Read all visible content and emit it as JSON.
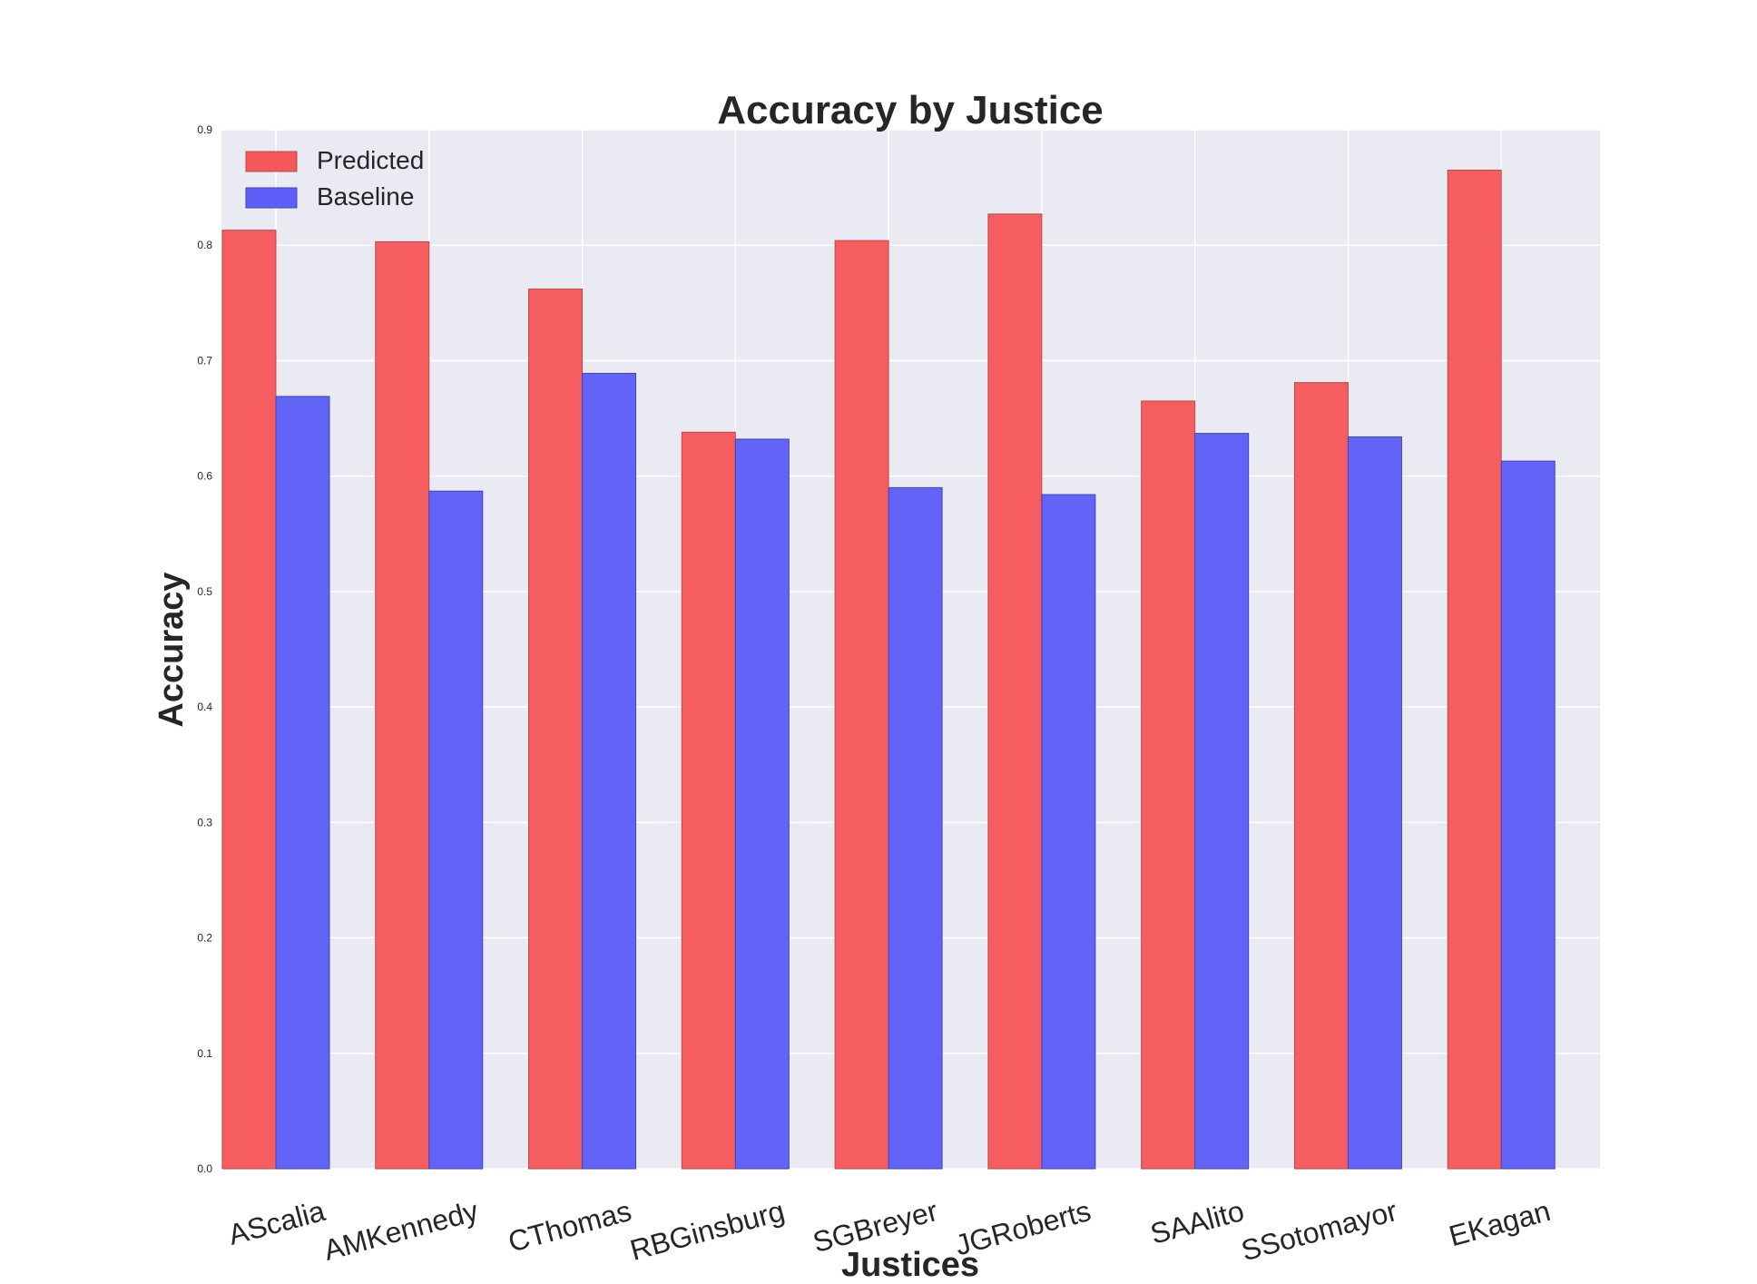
{
  "chart_data": {
    "type": "bar",
    "title": "Accuracy by Justice",
    "xlabel": "Justices",
    "ylabel": "Accuracy",
    "categories": [
      "AScalia",
      "AMKennedy",
      "CThomas",
      "RBGinsburg",
      "SGBreyer",
      "JGRoberts",
      "SAAlito",
      "SSotomayor",
      "EKagan"
    ],
    "series": [
      {
        "name": "Predicted",
        "color": "#f5585b",
        "values": [
          0.813,
          0.803,
          0.762,
          0.638,
          0.804,
          0.827,
          0.665,
          0.681,
          0.865
        ]
      },
      {
        "name": "Baseline",
        "color": "#5d5ef7",
        "values": [
          0.669,
          0.587,
          0.689,
          0.632,
          0.59,
          0.584,
          0.637,
          0.634,
          0.613
        ]
      }
    ],
    "ylim": [
      0,
      0.9
    ],
    "yticks": [
      "0.0",
      "0.1",
      "0.2",
      "0.3",
      "0.4",
      "0.5",
      "0.6",
      "0.7",
      "0.8",
      "0.9"
    ],
    "grid": true,
    "legend_position": "top-left",
    "background_color": "#eaeaf2"
  }
}
